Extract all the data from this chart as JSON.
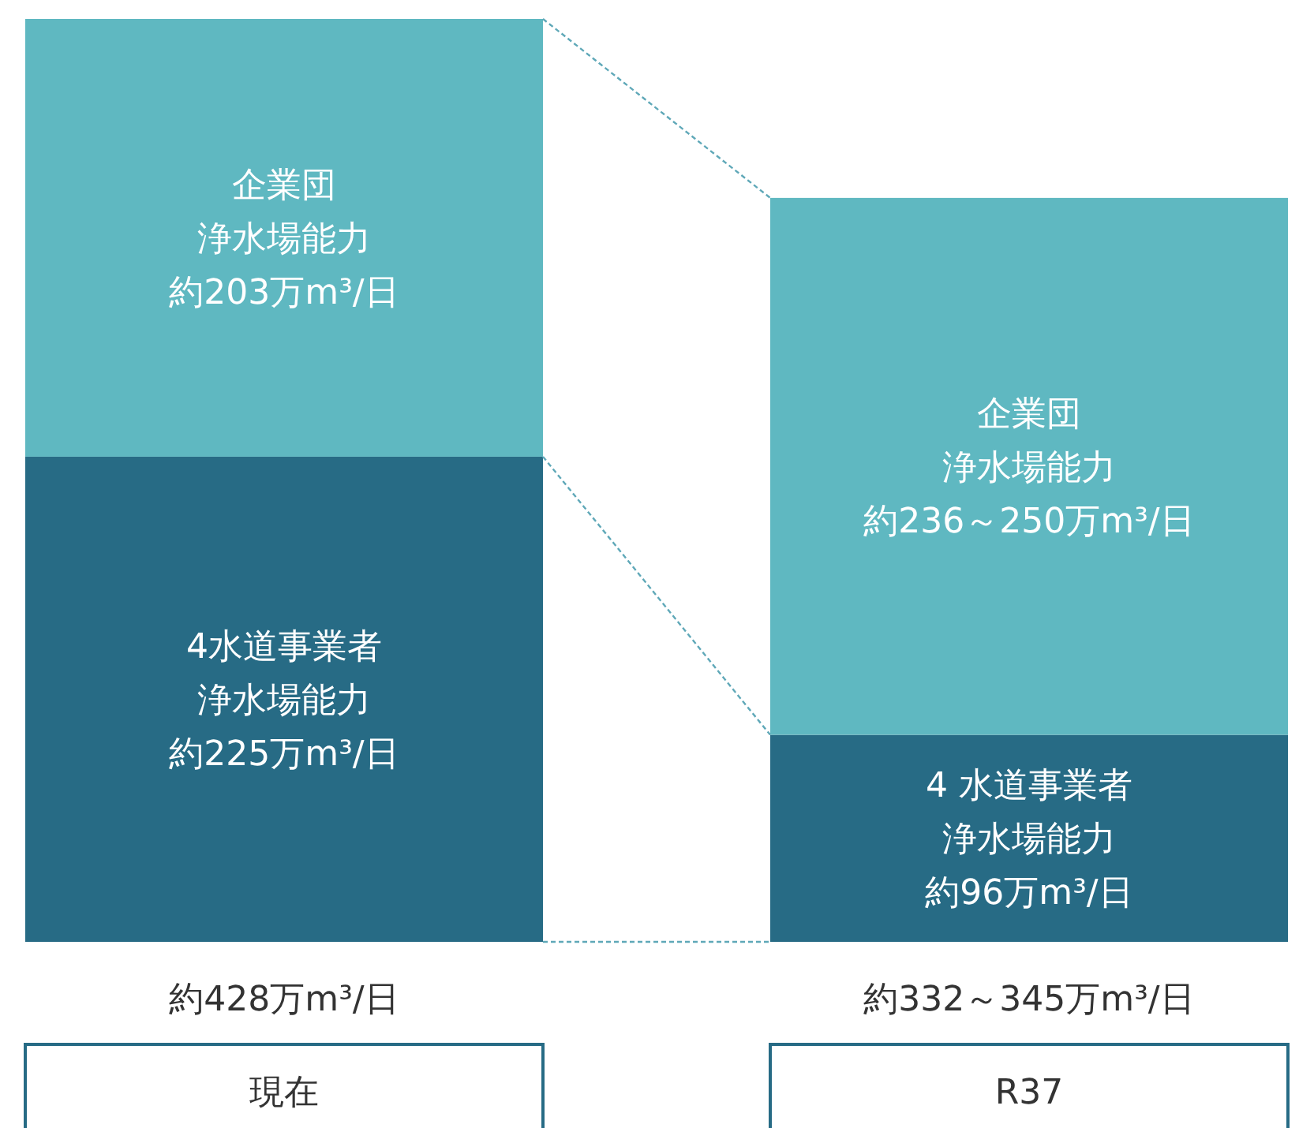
{
  "chart_data": {
    "type": "bar",
    "stacked": true,
    "categories": [
      "現在",
      "R37"
    ],
    "series": [
      {
        "color": "#276b85",
        "values": [
          225,
          96
        ],
        "value_labels": [
          "約225万m³/日",
          "約96万m³/日"
        ]
      },
      {
        "color": "#5fb8c1",
        "values": [
          203,
          249
        ],
        "value_labels": [
          "約203万m³/日",
          "約236～250万m³/日"
        ]
      }
    ],
    "annotations": [
      "4水道事業者",
      "浄水場能力",
      "4 水道事業者",
      "浄水場能力",
      "企業団",
      "浄水場能力",
      "企業団",
      "浄水場能力"
    ],
    "totals": [
      "約428万m³/日",
      "約332～345万m³/日"
    ]
  }
}
